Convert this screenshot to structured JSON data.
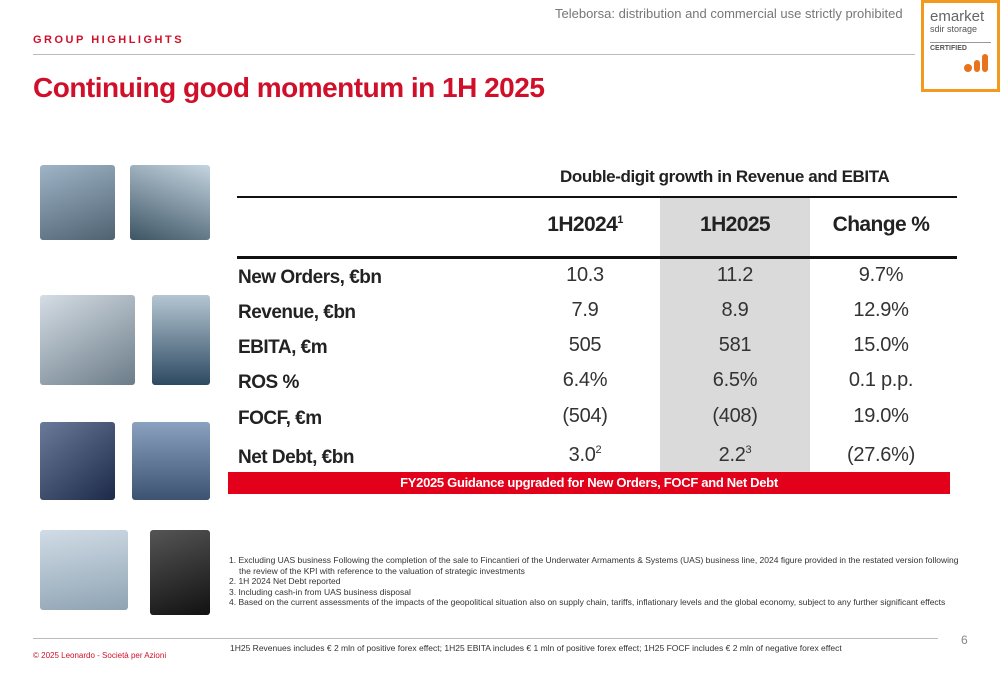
{
  "header": {
    "section": "GROUP HIGHLIGHTS",
    "watermark": "Teleborsa: distribution and commercial use strictly prohibited",
    "logo": {
      "line1": "emarket",
      "line2": "sdir storage",
      "line3": "CERTIFIED"
    }
  },
  "title": "Continuing good momentum in 1H 2025",
  "table": {
    "caption": "Double-digit growth in Revenue and EBITA",
    "columns": [
      {
        "text": "1H2024",
        "sup": "1"
      },
      "1H2025",
      "Change %"
    ],
    "rows": [
      {
        "label": "New Orders, €bn",
        "cells": [
          "10.3",
          "11.2",
          "9.7%"
        ]
      },
      {
        "label": "Revenue, €bn",
        "cells": [
          "7.9",
          "8.9",
          "12.9%"
        ]
      },
      {
        "label": "EBITA, €m",
        "cells": [
          "505",
          "581",
          "15.0%"
        ]
      },
      {
        "label": "ROS %",
        "cells": [
          "6.4%",
          "6.5%",
          "0.1 p.p."
        ]
      },
      {
        "label": "FOCF, €m",
        "cells": [
          "(504)",
          "(408)",
          "19.0%"
        ]
      },
      {
        "label": "Net Debt, €bn",
        "cells": [
          {
            "text": "3.0",
            "sup": "2"
          },
          {
            "text": "2.2",
            "sup": "3"
          },
          "(27.6%)"
        ]
      }
    ],
    "banner": "FY2025 Guidance upgraded for New Orders, FOCF and Net Debt"
  },
  "footnotes": [
    "1. Excluding UAS business Following the completion of the sale to Fincantieri of the Underwater Armaments & Systems (UAS) business line, 2024 figure provided in the restated version following the review of the KPI with reference to the valuation of strategic investments",
    "2. 1H 2024 Net Debt reported",
    "3. Including cash-in from UAS business disposal",
    "4. Based on the current assessments of the impacts of the geopolitical situation also on supply chain, tariffs, inflationary levels and the global economy, subject to any further significant effects"
  ],
  "note": "1H25 Revenues includes € 2 mln of positive forex effect; 1H25 EBITA includes € 1 mln of positive forex effect; 1H25 FOCF includes € 2 mln of negative forex effect",
  "page_number": "6",
  "footer": "© 2025 Leonardo - Società per Azioni"
}
